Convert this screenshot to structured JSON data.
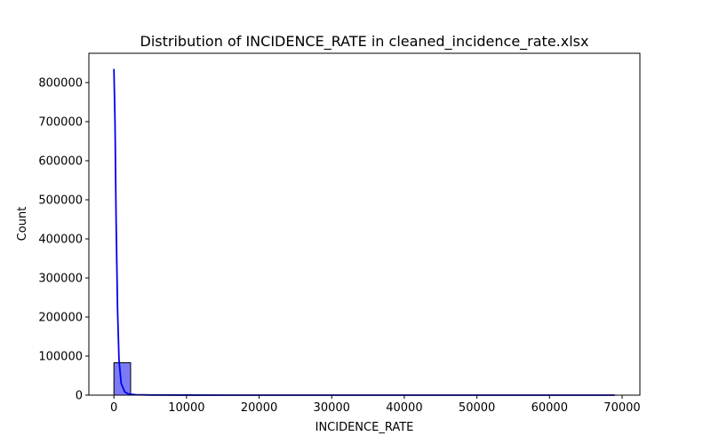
{
  "chart_data": {
    "type": "bar",
    "title": "Distribution of INCIDENCE_RATE in cleaned_incidence_rate.xlsx",
    "xlabel": "INCIDENCE_RATE",
    "ylabel": "Count",
    "xlim": [
      -3450,
      72450
    ],
    "ylim": [
      0,
      875000
    ],
    "xticks": [
      0,
      10000,
      20000,
      30000,
      40000,
      50000,
      60000,
      70000
    ],
    "yticks": [
      0,
      100000,
      200000,
      300000,
      400000,
      500000,
      600000,
      700000,
      800000
    ],
    "grid": false,
    "bins": [
      {
        "x0": 0,
        "x1": 2300,
        "count": 83000
      },
      {
        "x0": 2300,
        "x1": 4600,
        "count": 400
      },
      {
        "x0": 4600,
        "x1": 6900,
        "count": 150
      },
      {
        "x0": 6900,
        "x1": 9200,
        "count": 80
      },
      {
        "x0": 9200,
        "x1": 11500,
        "count": 40
      },
      {
        "x0": 11500,
        "x1": 13800,
        "count": 20
      },
      {
        "x0": 13800,
        "x1": 16100,
        "count": 10
      },
      {
        "x0": 16100,
        "x1": 18400,
        "count": 5
      }
    ],
    "bar_color": "#7b7bf6",
    "kde": {
      "name": "kde",
      "color": "#0000ee",
      "x": [
        0,
        150,
        300,
        500,
        700,
        1000,
        1500,
        2000,
        3000,
        5000,
        10000,
        20000,
        40000,
        69000
      ],
      "y": [
        835000,
        700000,
        450000,
        220000,
        90000,
        30000,
        8000,
        3000,
        1200,
        400,
        100,
        30,
        5,
        0
      ]
    }
  }
}
